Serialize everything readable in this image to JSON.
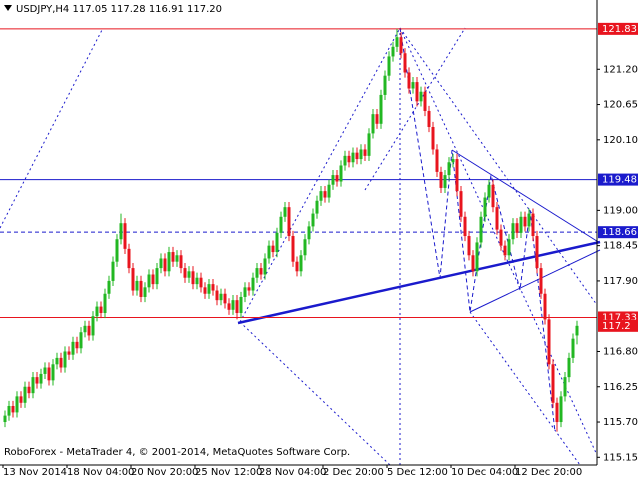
{
  "chart_data": {
    "type": "candlestick",
    "title": "USDJPY,H4  117.05 117.28 116.91 117.20",
    "footer": "RoboForex - MetaTrader 4, © 2001-2014, MetaQuotes Software Corp.",
    "up_color": "#22b722",
    "down_color": "#e8141e",
    "categories": [
      "13 Nov 2014",
      null,
      null,
      null,
      null,
      null,
      null,
      null,
      null,
      null,
      null,
      null,
      null,
      null,
      null,
      null,
      "18 Nov 04:00",
      null,
      null,
      null,
      null,
      null,
      null,
      null,
      null,
      null,
      null,
      null,
      null,
      null,
      null,
      null,
      "20 Nov 20:00",
      null,
      null,
      null,
      null,
      null,
      null,
      null,
      null,
      null,
      null,
      null,
      null,
      null,
      null,
      null,
      "25 Nov 12:00",
      null,
      null,
      null,
      null,
      null,
      null,
      null,
      null,
      null,
      null,
      null,
      null,
      null,
      null,
      null,
      "28 Nov 04:00",
      null,
      null,
      null,
      null,
      null,
      null,
      null,
      null,
      null,
      null,
      null,
      null,
      null,
      null,
      null,
      "2 Dec 20:00",
      null,
      null,
      null,
      null,
      null,
      null,
      null,
      null,
      null,
      null,
      null,
      null,
      null,
      null,
      null,
      "5 Dec 12:00",
      null,
      null,
      null,
      null,
      null,
      null,
      null,
      null,
      null,
      null,
      null,
      null,
      null,
      null,
      null,
      "10 Dec 04:00",
      null,
      null,
      null,
      null,
      null,
      null,
      null,
      null,
      null,
      null,
      null,
      null,
      null,
      null,
      null,
      "12 Dec 20:00",
      null,
      null,
      null,
      null,
      null,
      null,
      null,
      null,
      null,
      null,
      null,
      null,
      null,
      null,
      null
    ],
    "ohlc": [
      [
        115.7,
        115.88,
        115.62,
        115.8
      ],
      [
        115.8,
        116.03,
        115.72,
        115.95
      ],
      [
        115.95,
        116.03,
        115.77,
        115.85
      ],
      [
        115.85,
        116.18,
        115.77,
        116.1
      ],
      [
        116.1,
        116.18,
        115.92,
        116.0
      ],
      [
        116.0,
        116.33,
        115.92,
        116.25
      ],
      [
        116.25,
        116.33,
        116.07,
        116.15
      ],
      [
        116.15,
        116.48,
        116.07,
        116.4
      ],
      [
        116.4,
        116.48,
        116.22,
        116.3
      ],
      [
        116.3,
        116.53,
        116.22,
        116.45
      ],
      [
        116.45,
        116.63,
        116.37,
        116.55
      ],
      [
        116.55,
        116.63,
        116.27,
        116.35
      ],
      [
        116.35,
        116.68,
        116.27,
        116.6
      ],
      [
        116.6,
        116.78,
        116.52,
        116.7
      ],
      [
        116.7,
        116.78,
        116.47,
        116.55
      ],
      [
        116.55,
        116.88,
        116.47,
        116.8
      ],
      [
        116.8,
        116.88,
        116.67,
        116.75
      ],
      [
        116.75,
        117.03,
        116.67,
        116.95
      ],
      [
        116.95,
        117.03,
        116.77,
        116.85
      ],
      [
        116.85,
        117.18,
        116.77,
        117.1
      ],
      [
        117.1,
        117.28,
        117.02,
        117.2
      ],
      [
        117.2,
        117.28,
        116.97,
        117.05
      ],
      [
        117.05,
        117.43,
        116.97,
        117.35
      ],
      [
        117.35,
        117.58,
        117.27,
        117.5
      ],
      [
        117.5,
        117.58,
        117.32,
        117.4
      ],
      [
        117.4,
        117.78,
        117.32,
        117.7
      ],
      [
        117.7,
        117.98,
        117.62,
        117.9
      ],
      [
        117.9,
        118.28,
        117.82,
        118.2
      ],
      [
        118.2,
        118.63,
        118.12,
        118.55
      ],
      [
        118.55,
        118.95,
        118.47,
        118.8
      ],
      [
        118.8,
        118.88,
        118.32,
        118.4
      ],
      [
        118.4,
        118.48,
        118.02,
        118.1
      ],
      [
        118.1,
        118.18,
        117.67,
        117.75
      ],
      [
        117.75,
        117.98,
        117.67,
        117.9
      ],
      [
        117.9,
        117.98,
        117.57,
        117.65
      ],
      [
        117.65,
        117.88,
        117.57,
        117.8
      ],
      [
        117.8,
        118.08,
        117.72,
        118.0
      ],
      [
        118.0,
        118.08,
        117.77,
        117.85
      ],
      [
        117.85,
        118.18,
        117.77,
        118.1
      ],
      [
        118.1,
        118.33,
        118.02,
        118.25
      ],
      [
        118.25,
        118.33,
        117.97,
        118.05
      ],
      [
        118.05,
        118.43,
        117.97,
        118.35
      ],
      [
        118.35,
        118.43,
        118.12,
        118.2
      ],
      [
        118.2,
        118.38,
        118.12,
        118.3
      ],
      [
        118.3,
        118.38,
        118.02,
        118.1
      ],
      [
        118.1,
        118.18,
        117.87,
        117.95
      ],
      [
        117.95,
        118.13,
        117.87,
        118.05
      ],
      [
        118.05,
        118.13,
        117.77,
        117.85
      ],
      [
        117.85,
        118.03,
        117.77,
        117.95
      ],
      [
        117.95,
        118.03,
        117.72,
        117.8
      ],
      [
        117.8,
        117.88,
        117.62,
        117.7
      ],
      [
        117.7,
        117.93,
        117.62,
        117.85
      ],
      [
        117.85,
        117.93,
        117.67,
        117.75
      ],
      [
        117.75,
        117.83,
        117.52,
        117.6
      ],
      [
        117.6,
        117.78,
        117.52,
        117.7
      ],
      [
        117.7,
        117.78,
        117.47,
        117.55
      ],
      [
        117.55,
        117.63,
        117.37,
        117.45
      ],
      [
        117.45,
        117.68,
        117.37,
        117.6
      ],
      [
        117.6,
        117.68,
        117.3,
        117.4
      ],
      [
        117.4,
        117.73,
        117.32,
        117.65
      ],
      [
        117.65,
        117.88,
        117.57,
        117.8
      ],
      [
        117.8,
        117.88,
        117.67,
        117.75
      ],
      [
        117.75,
        118.03,
        117.67,
        117.95
      ],
      [
        117.95,
        118.18,
        117.87,
        118.1
      ],
      [
        118.1,
        118.18,
        117.92,
        118.0
      ],
      [
        118.0,
        118.33,
        117.92,
        118.25
      ],
      [
        118.25,
        118.53,
        118.17,
        118.45
      ],
      [
        118.45,
        118.53,
        118.27,
        118.35
      ],
      [
        118.35,
        118.73,
        118.27,
        118.65
      ],
      [
        118.65,
        118.98,
        118.57,
        118.9
      ],
      [
        118.9,
        119.13,
        118.82,
        119.05
      ],
      [
        119.05,
        119.13,
        118.52,
        118.6
      ],
      [
        118.6,
        118.68,
        118.12,
        118.2
      ],
      [
        118.2,
        118.28,
        117.97,
        118.05
      ],
      [
        118.05,
        118.38,
        117.97,
        118.3
      ],
      [
        118.3,
        118.63,
        118.22,
        118.55
      ],
      [
        118.55,
        118.83,
        118.47,
        118.75
      ],
      [
        118.75,
        119.03,
        118.67,
        118.95
      ],
      [
        118.95,
        119.23,
        118.87,
        119.15
      ],
      [
        119.15,
        119.38,
        119.07,
        119.3
      ],
      [
        119.3,
        119.38,
        119.12,
        119.2
      ],
      [
        119.2,
        119.48,
        119.12,
        119.4
      ],
      [
        119.4,
        119.63,
        119.32,
        119.55
      ],
      [
        119.55,
        119.63,
        119.37,
        119.45
      ],
      [
        119.45,
        119.78,
        119.37,
        119.7
      ],
      [
        119.7,
        119.93,
        119.62,
        119.85
      ],
      [
        119.85,
        119.93,
        119.67,
        119.75
      ],
      [
        119.75,
        119.98,
        119.67,
        119.9
      ],
      [
        119.9,
        119.98,
        119.72,
        119.8
      ],
      [
        119.8,
        120.03,
        119.72,
        119.95
      ],
      [
        119.95,
        120.03,
        119.77,
        119.85
      ],
      [
        119.85,
        120.28,
        119.77,
        120.2
      ],
      [
        120.2,
        120.58,
        120.12,
        120.5
      ],
      [
        120.5,
        120.58,
        120.27,
        120.35
      ],
      [
        120.35,
        120.88,
        120.27,
        120.8
      ],
      [
        120.8,
        121.18,
        120.72,
        121.1
      ],
      [
        121.1,
        121.48,
        121.02,
        121.4
      ],
      [
        121.4,
        121.63,
        121.32,
        121.55
      ],
      [
        121.55,
        121.83,
        121.47,
        121.7
      ],
      [
        121.7,
        121.78,
        121.37,
        121.45
      ],
      [
        121.45,
        121.53,
        121.07,
        121.15
      ],
      [
        121.15,
        121.23,
        120.82,
        120.9
      ],
      [
        120.9,
        121.08,
        120.82,
        121.0
      ],
      [
        121.0,
        121.08,
        120.62,
        120.7
      ],
      [
        120.7,
        120.93,
        120.62,
        120.85
      ],
      [
        120.85,
        120.93,
        120.47,
        120.55
      ],
      [
        120.55,
        120.63,
        120.22,
        120.3
      ],
      [
        120.3,
        120.38,
        119.87,
        119.95
      ],
      [
        119.95,
        120.03,
        119.52,
        119.6
      ],
      [
        119.6,
        119.68,
        119.27,
        119.35
      ],
      [
        119.35,
        119.63,
        119.27,
        119.55
      ],
      [
        119.55,
        119.83,
        119.47,
        119.75
      ],
      [
        119.75,
        119.88,
        119.67,
        119.8
      ],
      [
        119.8,
        119.88,
        119.22,
        119.3
      ],
      [
        119.3,
        119.38,
        118.82,
        118.9
      ],
      [
        118.9,
        118.98,
        118.52,
        118.6
      ],
      [
        118.6,
        118.68,
        118.22,
        118.3
      ],
      [
        118.3,
        118.38,
        117.97,
        118.05
      ],
      [
        118.05,
        118.58,
        117.97,
        118.5
      ],
      [
        118.5,
        118.98,
        118.42,
        118.9
      ],
      [
        118.9,
        119.28,
        118.82,
        119.2
      ],
      [
        119.2,
        119.48,
        119.12,
        119.4
      ],
      [
        119.4,
        119.48,
        118.97,
        119.05
      ],
      [
        119.05,
        119.13,
        118.62,
        118.7
      ],
      [
        118.7,
        118.78,
        118.37,
        118.45
      ],
      [
        118.45,
        118.53,
        118.22,
        118.3
      ],
      [
        118.3,
        118.63,
        118.22,
        118.55
      ],
      [
        118.55,
        118.88,
        118.47,
        118.8
      ],
      [
        118.8,
        118.88,
        118.57,
        118.65
      ],
      [
        118.65,
        118.98,
        118.57,
        118.9
      ],
      [
        118.9,
        118.98,
        118.67,
        118.75
      ],
      [
        118.75,
        119.03,
        118.67,
        118.95
      ],
      [
        118.95,
        119.03,
        118.52,
        118.6
      ],
      [
        118.6,
        118.68,
        118.02,
        118.1
      ],
      [
        118.1,
        118.18,
        117.62,
        117.7
      ],
      [
        117.7,
        117.78,
        117.22,
        117.3
      ],
      [
        117.3,
        117.38,
        116.52,
        116.6
      ],
      [
        116.6,
        116.68,
        115.92,
        116.0
      ],
      [
        116.0,
        116.08,
        115.55,
        115.7
      ],
      [
        115.7,
        116.18,
        115.62,
        116.1
      ],
      [
        116.1,
        116.48,
        116.02,
        116.4
      ],
      [
        116.4,
        116.78,
        116.32,
        116.7
      ],
      [
        116.7,
        117.08,
        116.62,
        117.0
      ],
      [
        117.05,
        117.28,
        116.91,
        117.2
      ]
    ],
    "ylim": [
      115.03,
      122.28
    ],
    "yticks": [
      {
        "value": 121.2,
        "label": "121.20"
      },
      120.65,
      {
        "value": 120.1,
        "label": "120.10"
      },
      {
        "value": 119,
        "label": "119.00"
      },
      118.45,
      {
        "value": 117.9,
        "label": "117.90"
      },
      {
        "value": 116.8,
        "label": "116.80"
      },
      116.25,
      {
        "value": 115.7,
        "label": "115.70"
      },
      115.15
    ],
    "hlines": [
      {
        "value": 121.83,
        "color": "#e8141e"
      },
      {
        "value": 119.48,
        "color": "#1a1acc"
      },
      {
        "value": 118.66,
        "color": "#1a1acc",
        "dashed": true
      },
      {
        "value": 117.33,
        "color": "#e8141e"
      }
    ],
    "bid": 117.2
  }
}
